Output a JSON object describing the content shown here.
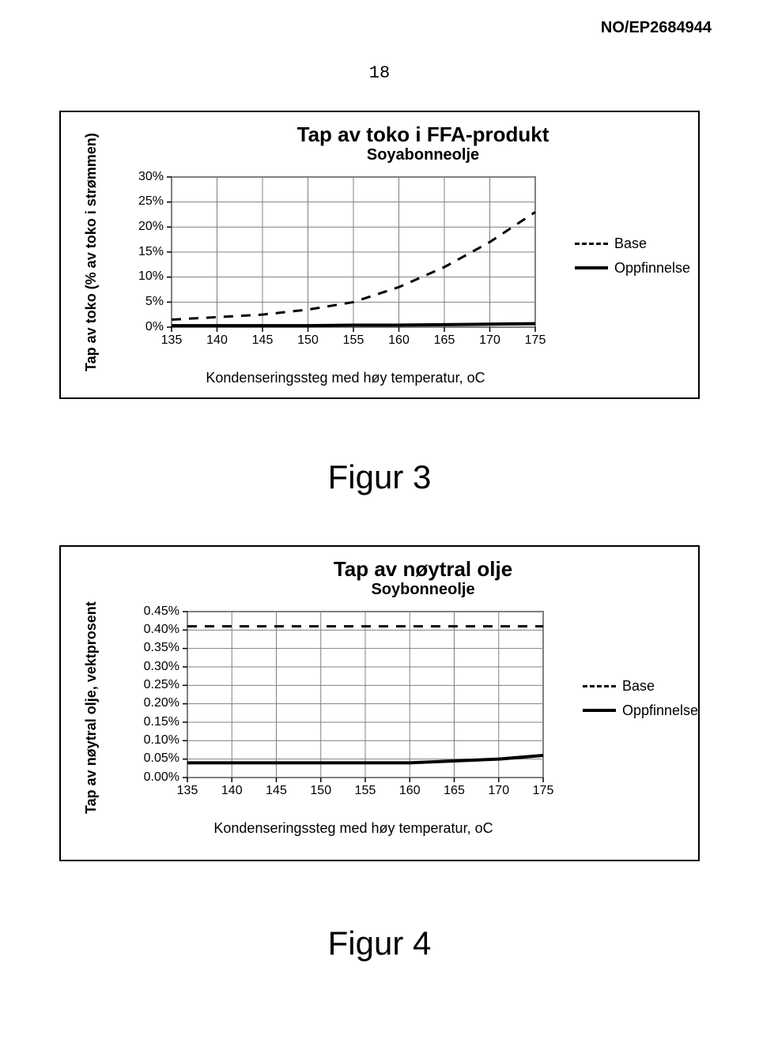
{
  "document": {
    "header_id": "NO/EP2684944",
    "page_number": "18"
  },
  "figure3_caption": "Figur 3",
  "figure4_caption": "Figur 4",
  "chart1": {
    "type": "line",
    "title": "Tap av toko i FFA-produkt",
    "subtitle": "Soyabonneolje",
    "yaxis_label": "Tap av toko (% av toko i strømmen)",
    "xaxis_caption": "Kondenseringssteg med høy temperatur, oC",
    "x_ticks": [
      "135",
      "140",
      "145",
      "150",
      "155",
      "160",
      "165",
      "170",
      "175"
    ],
    "y_ticks": [
      "0%",
      "5%",
      "10%",
      "15%",
      "20%",
      "25%",
      "30%"
    ],
    "xlim": [
      135,
      175
    ],
    "ylim": [
      0,
      30
    ],
    "gridline_color": "#808080",
    "background_color": "#ffffff",
    "tick_fontsize": 16,
    "legend": {
      "items": [
        {
          "label": "Base",
          "style": "dashed",
          "color": "#000000",
          "width": 3
        },
        {
          "label": "Oppfinnelse",
          "style": "solid",
          "color": "#000000",
          "width": 4
        }
      ]
    },
    "series": [
      {
        "name": "Base",
        "style": "dashed",
        "color": "#000000",
        "width": 3,
        "x": [
          135,
          140,
          145,
          150,
          155,
          160,
          165,
          170,
          175
        ],
        "y": [
          1.5,
          2,
          2.5,
          3.5,
          5,
          8,
          12,
          17,
          23
        ]
      },
      {
        "name": "Oppfinnelse",
        "style": "solid",
        "color": "#000000",
        "width": 4,
        "x": [
          135,
          140,
          145,
          150,
          155,
          160,
          165,
          170,
          175
        ],
        "y": [
          0.3,
          0.3,
          0.3,
          0.3,
          0.4,
          0.4,
          0.5,
          0.6,
          0.7
        ]
      }
    ]
  },
  "chart2": {
    "type": "line",
    "title": "Tap av nøytral olje",
    "subtitle": "Soybonneolje",
    "yaxis_label": "Tap av nøytral olje, vektprosent",
    "xaxis_caption": "Kondenseringssteg med høy temperatur, oC",
    "x_ticks": [
      "135",
      "140",
      "145",
      "150",
      "155",
      "160",
      "165",
      "170",
      "175"
    ],
    "y_ticks": [
      "0.00%",
      "0.05%",
      "0.10%",
      "0.15%",
      "0.20%",
      "0.25%",
      "0.30%",
      "0.35%",
      "0.40%",
      "0.45%"
    ],
    "xlim": [
      135,
      175
    ],
    "ylim": [
      0,
      0.45
    ],
    "gridline_color": "#808080",
    "background_color": "#ffffff",
    "tick_fontsize": 16,
    "legend": {
      "items": [
        {
          "label": "Base",
          "style": "dashed",
          "color": "#000000",
          "width": 3
        },
        {
          "label": "Oppfinnelse",
          "style": "solid",
          "color": "#000000",
          "width": 4
        }
      ]
    },
    "series": [
      {
        "name": "Base",
        "style": "dashed",
        "color": "#000000",
        "width": 3,
        "x": [
          135,
          140,
          145,
          150,
          155,
          160,
          165,
          170,
          175
        ],
        "y": [
          0.41,
          0.41,
          0.41,
          0.41,
          0.41,
          0.41,
          0.41,
          0.41,
          0.41
        ]
      },
      {
        "name": "Oppfinnelse",
        "style": "solid",
        "color": "#000000",
        "width": 4,
        "x": [
          135,
          140,
          145,
          150,
          155,
          160,
          165,
          170,
          175
        ],
        "y": [
          0.04,
          0.04,
          0.04,
          0.04,
          0.04,
          0.04,
          0.045,
          0.05,
          0.06
        ]
      }
    ]
  }
}
